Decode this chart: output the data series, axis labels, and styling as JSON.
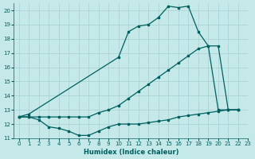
{
  "xlabel": "Humidex (Indice chaleur)",
  "xlim": [
    -0.5,
    23
  ],
  "ylim": [
    11,
    20.5
  ],
  "yticks": [
    11,
    12,
    13,
    14,
    15,
    16,
    17,
    18,
    19,
    20
  ],
  "xticks": [
    0,
    1,
    2,
    3,
    4,
    5,
    6,
    7,
    8,
    9,
    10,
    11,
    12,
    13,
    14,
    15,
    16,
    17,
    18,
    19,
    20,
    21,
    22,
    23
  ],
  "bg_color": "#c5e8e8",
  "grid_color": "#a8d0d0",
  "line_color": "#006060",
  "curve_upper_x": [
    0,
    1,
    10,
    11,
    12,
    13,
    14,
    15,
    16,
    17,
    18,
    19,
    20,
    21,
    22
  ],
  "curve_upper_y": [
    12.5,
    12.7,
    16.7,
    18.5,
    18.9,
    19.0,
    19.5,
    20.3,
    20.2,
    20.3,
    18.5,
    17.5,
    13.0,
    13.0,
    13.0
  ],
  "curve_mid_x": [
    0,
    1,
    2,
    3,
    4,
    5,
    6,
    7,
    8,
    9,
    10,
    11,
    12,
    13,
    14,
    15,
    16,
    17,
    18,
    19,
    20,
    21,
    22
  ],
  "curve_mid_y": [
    12.5,
    12.5,
    12.5,
    12.5,
    12.5,
    12.5,
    12.5,
    12.5,
    12.8,
    13.0,
    13.3,
    13.8,
    14.3,
    14.8,
    15.3,
    15.8,
    16.3,
    16.8,
    17.3,
    17.5,
    17.5,
    13.0,
    13.0
  ],
  "curve_low_x": [
    0,
    1,
    2,
    3,
    4,
    5,
    6,
    7,
    8,
    9,
    10,
    11,
    12,
    13,
    14,
    15,
    16,
    17,
    18,
    19,
    20,
    21,
    22
  ],
  "curve_low_y": [
    12.5,
    12.5,
    12.3,
    11.8,
    11.7,
    11.5,
    11.2,
    11.2,
    11.5,
    11.8,
    12.0,
    12.0,
    12.0,
    12.1,
    12.2,
    12.3,
    12.5,
    12.6,
    12.7,
    12.8,
    12.9,
    13.0,
    13.0
  ]
}
